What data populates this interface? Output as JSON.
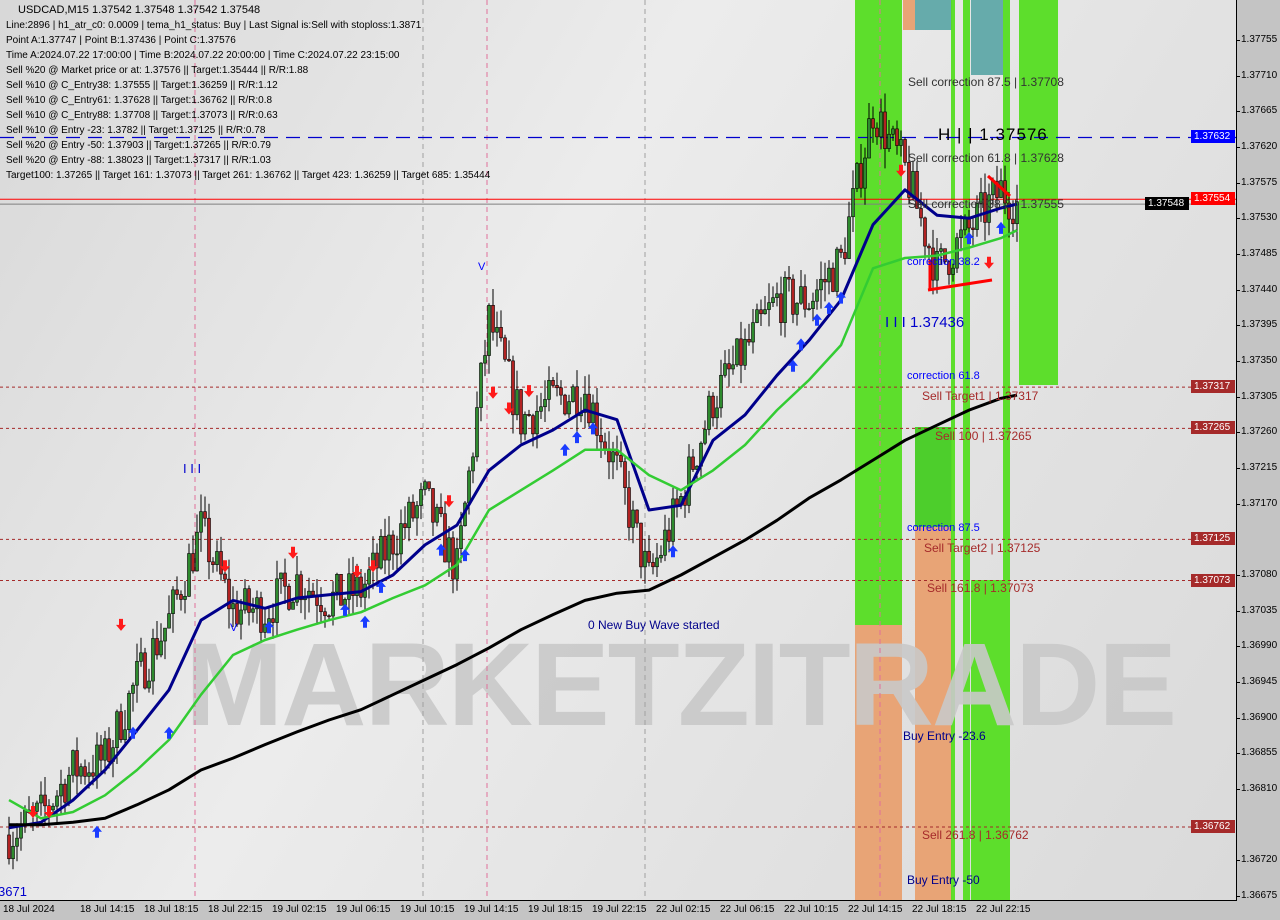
{
  "header": {
    "title": "USDCAD,M15  1.37542 1.37548 1.37542 1.37548",
    "lines": [
      "Line:2896 | h1_atr_c0: 0.0009 | tema_h1_status: Buy | Last Signal is:Sell with stoploss:1.3871",
      "Point A:1.37747 | Point B:1.37436 | Point C:1.37576",
      "Time A:2024.07.22 17:00:00 | Time B:2024.07.22 20:00:00 | Time C:2024.07.22 23:15:00",
      "Sell %20 @ Market price or at: 1.37576 || Target:1.35444 || R/R:1.88",
      "Sell %10 @ C_Entry38: 1.37555 || Target:1.36259 || R/R:1.12",
      "Sell %10 @ C_Entry61: 1.37628 || Target:1.36762 || R/R:0.8",
      "Sell %10 @ C_Entry88: 1.37708 || Target:1.37073 || R/R:0.63",
      "Sell %10 @ Entry -23: 1.3782 || Target:1.37125 || R/R:0.78",
      "Sell %20 @ Entry -50: 1.37903 || Target:1.37265 || R/R:0.79",
      "Sell %20 @ Entry -88: 1.38023 || Target:1.37317 || R/R:1.03",
      "Target100: 1.37265 || Target 161: 1.37073 || Target 261: 1.36762 || Target 423: 1.36259 || Target 685: 1.35444"
    ]
  },
  "watermark": "MARKETZITRADE",
  "chart_labels": {
    "sell_corr_875": "Sell correction 87.5 | 1.37708",
    "hh": "H | | 1.37576",
    "sell_corr_618": "Sell correction 61.8 | 1.37628",
    "sell_corr_382": "Sell correction 38.2 | 1.37555",
    "corr_382": "correction 38.2",
    "lll": "I I I 1.37436",
    "corr_618": "correction 61.8",
    "sell_target1": "Sell Target1 | 1.37317",
    "sell_100": "Sell 100 | 1.37265",
    "corr_875": "correction 87.5",
    "sell_target2": "Sell Target2 | 1.37125",
    "sell_1618": "Sell 161.8 | 1.37073",
    "buy_entry_236": "Buy Entry -23.6",
    "sell_2618": "Sell 261.8 | 1.36762",
    "buy_entry_50": "Buy Entry -50",
    "new_buy_wave": "0 New Buy Wave started",
    "wave_iii": "I I I",
    "wave_v_top": "V",
    "wave_v_low": "V",
    "bottom_left": "3671"
  },
  "chart_data": {
    "type": "candlestick",
    "symbol": "USDCAD",
    "timeframe": "M15",
    "ylim": [
      1.36675,
      1.37755
    ],
    "y_ticks": [
      "1.37755",
      "1.37710",
      "1.37665",
      "1.37620",
      "1.37575",
      "1.37530",
      "1.37485",
      "1.37440",
      "1.37395",
      "1.37350",
      "1.37305",
      "1.37260",
      "1.37215",
      "1.37170",
      "1.37080",
      "1.37035",
      "1.36990",
      "1.36945",
      "1.36900",
      "1.36855",
      "1.36810",
      "1.36720",
      "1.36675"
    ],
    "x_ticks": [
      {
        "label": "18 Jul 2024",
        "time": "2024.07.18 09:15"
      },
      {
        "label": "18 Jul 14:15",
        "time": "2024.07.18 14:15"
      },
      {
        "label": "18 Jul 18:15",
        "time": "2024.07.18 18:15"
      },
      {
        "label": "18 Jul 22:15",
        "time": "2024.07.18 22:15"
      },
      {
        "label": "19 Jul 02:15",
        "time": "2024.07.19 02:15"
      },
      {
        "label": "19 Jul 06:15",
        "time": "2024.07.19 06:15"
      },
      {
        "label": "19 Jul 10:15",
        "time": "2024.07.19 10:15"
      },
      {
        "label": "19 Jul 14:15",
        "time": "2024.07.19 14:15"
      },
      {
        "label": "19 Jul 18:15",
        "time": "2024.07.19 18:15"
      },
      {
        "label": "19 Jul 22:15",
        "time": "2024.07.19 22:15"
      },
      {
        "label": "22 Jul 02:15",
        "time": "2024.07.22 02:15"
      },
      {
        "label": "22 Jul 06:15",
        "time": "2024.07.22 06:15"
      },
      {
        "label": "22 Jul 10:15",
        "time": "2024.07.22 10:15"
      },
      {
        "label": "22 Jul 14:15",
        "time": "2024.07.22 14:15"
      },
      {
        "label": "22 Jul 18:15",
        "time": "2024.07.22 18:15"
      },
      {
        "label": "22 Jul 22:15",
        "time": "2024.07.22 22:15"
      }
    ],
    "price_tags": [
      {
        "value": "1.37632",
        "price": 1.37632,
        "color": "#0000ff"
      },
      {
        "value": "1.37554",
        "price": 1.37554,
        "color": "#ff0000"
      },
      {
        "value": "1.37548",
        "price": 1.37548,
        "color": "#000000"
      },
      {
        "value": "1.37317",
        "price": 1.37317,
        "color": "#a52a2a"
      },
      {
        "value": "1.37265",
        "price": 1.37265,
        "color": "#a52a2a"
      },
      {
        "value": "1.37125",
        "price": 1.37125,
        "color": "#a52a2a"
      },
      {
        "value": "1.37073",
        "price": 1.37073,
        "color": "#a52a2a"
      },
      {
        "value": "1.36762",
        "price": 1.36762,
        "color": "#a52a2a"
      }
    ],
    "horizontal_levels": [
      {
        "price": 1.37632,
        "style": "dashed",
        "color": "#0000cd"
      },
      {
        "price": 1.37554,
        "style": "solid",
        "color": "#ff0000"
      },
      {
        "price": 1.37548,
        "style": "solid",
        "color": "#808080"
      },
      {
        "price": 1.37317,
        "style": "dotted",
        "color": "#a52a2a"
      },
      {
        "price": 1.37265,
        "style": "dotted",
        "color": "#a52a2a"
      },
      {
        "price": 1.37125,
        "style": "dotted",
        "color": "#a52a2a"
      },
      {
        "price": 1.37073,
        "style": "dotted",
        "color": "#a52a2a"
      },
      {
        "price": 1.36762,
        "style": "dotted",
        "color": "#a52a2a"
      }
    ],
    "times": [
      "2024.07.18 08:15",
      "2024.07.18 10:15",
      "2024.07.18 12:15",
      "2024.07.18 14:15",
      "2024.07.18 16:15",
      "2024.07.18 18:15",
      "2024.07.18 20:15",
      "2024.07.18 22:15",
      "2024.07.19 00:15",
      "2024.07.19 02:15",
      "2024.07.19 04:15",
      "2024.07.19 06:15",
      "2024.07.19 08:15",
      "2024.07.19 10:15",
      "2024.07.19 12:15",
      "2024.07.19 14:15",
      "2024.07.19 16:15",
      "2024.07.19 18:15",
      "2024.07.19 20:15",
      "2024.07.19 22:15",
      "2024.07.22 00:15",
      "2024.07.22 02:15",
      "2024.07.22 04:15",
      "2024.07.22 06:15",
      "2024.07.22 08:15",
      "2024.07.22 10:15",
      "2024.07.22 12:15",
      "2024.07.22 14:15",
      "2024.07.22 16:15",
      "2024.07.22 18:15",
      "2024.07.22 20:15",
      "2024.07.22 22:15",
      "2024.07.22 23:15"
    ],
    "close": [
      1.36752,
      1.36777,
      1.36834,
      1.36847,
      1.36948,
      1.37023,
      1.37137,
      1.37036,
      1.37036,
      1.37074,
      1.37048,
      1.37061,
      1.37124,
      1.37175,
      1.37086,
      1.37402,
      1.37276,
      1.37301,
      1.37314,
      1.37212,
      1.37074,
      1.37175,
      1.37301,
      1.37364,
      1.37427,
      1.37427,
      1.37477,
      1.37667,
      1.37591,
      1.37465,
      1.37515,
      1.37566,
      1.37548
    ],
    "series": [
      {
        "color": "#00008b",
        "values": [
          1.36761,
          1.36768,
          1.36796,
          1.36834,
          1.36884,
          1.36935,
          1.37023,
          1.37048,
          1.37038,
          1.37051,
          1.37055,
          1.37059,
          1.3708,
          1.37118,
          1.37143,
          1.37212,
          1.37244,
          1.37263,
          1.37288,
          1.37276,
          1.37162,
          1.37168,
          1.3725,
          1.37282,
          1.37332,
          1.37376,
          1.37427,
          1.37522,
          1.37566,
          1.37534,
          1.3753,
          1.37543,
          1.37548
        ]
      },
      {
        "color": "#33cc33",
        "values": [
          1.36796,
          1.36773,
          1.36781,
          1.36802,
          1.36834,
          1.36872,
          1.36929,
          1.36979,
          1.36998,
          1.37011,
          1.37023,
          1.37033,
          1.37051,
          1.37067,
          1.37093,
          1.37162,
          1.37187,
          1.37212,
          1.37238,
          1.37238,
          1.37206,
          1.37187,
          1.37212,
          1.37244,
          1.37288,
          1.37326,
          1.3737,
          1.37467,
          1.3748,
          1.37483,
          1.37493,
          1.37505,
          1.37515
        ]
      },
      {
        "color": "#000000",
        "values": [
          1.36765,
          1.36765,
          1.36768,
          1.36773,
          1.3679,
          1.36809,
          1.36834,
          1.36849,
          1.36866,
          1.36882,
          1.36897,
          1.3691,
          1.36929,
          1.36948,
          1.36967,
          1.36988,
          1.37011,
          1.3703,
          1.37048,
          1.37057,
          1.37061,
          1.3708,
          1.37102,
          1.37124,
          1.37149,
          1.37177,
          1.372,
          1.37225,
          1.3725,
          1.37269,
          1.37288,
          1.37303,
          1.37307
        ]
      }
    ],
    "signals": [
      {
        "time": "2024.07.18 13:45",
        "price": 1.36756,
        "dir": "buy"
      },
      {
        "time": "2024.07.18 16:00",
        "price": 1.36881,
        "dir": "buy"
      },
      {
        "time": "2024.07.18 18:15",
        "price": 1.36881,
        "dir": "buy"
      },
      {
        "time": "2024.07.19 00:30",
        "price": 1.37014,
        "dir": "buy"
      },
      {
        "time": "2024.07.19 05:15",
        "price": 1.37036,
        "dir": "buy"
      },
      {
        "time": "2024.07.19 06:30",
        "price": 1.37021,
        "dir": "buy"
      },
      {
        "time": "2024.07.19 07:30",
        "price": 1.37065,
        "dir": "buy"
      },
      {
        "time": "2024.07.19 11:15",
        "price": 1.37112,
        "dir": "buy"
      },
      {
        "time": "2024.07.19 12:45",
        "price": 1.37105,
        "dir": "buy"
      },
      {
        "time": "2024.07.19 19:00",
        "price": 1.37238,
        "dir": "buy"
      },
      {
        "time": "2024.07.19 19:45",
        "price": 1.37254,
        "dir": "buy"
      },
      {
        "time": "2024.07.19 20:45",
        "price": 1.37265,
        "dir": "buy"
      },
      {
        "time": "2024.07.22 01:45",
        "price": 1.3711,
        "dir": "buy"
      },
      {
        "time": "2024.07.22 09:15",
        "price": 1.37344,
        "dir": "buy"
      },
      {
        "time": "2024.07.22 09:45",
        "price": 1.37371,
        "dir": "buy"
      },
      {
        "time": "2024.07.22 10:45",
        "price": 1.37402,
        "dir": "buy"
      },
      {
        "time": "2024.07.22 11:30",
        "price": 1.37417,
        "dir": "buy"
      },
      {
        "time": "2024.07.22 12:15",
        "price": 1.3743,
        "dir": "buy"
      },
      {
        "time": "2024.07.22 20:15",
        "price": 1.37505,
        "dir": "buy"
      },
      {
        "time": "2024.07.22 22:15",
        "price": 1.37518,
        "dir": "buy"
      },
      {
        "time": "2024.07.18 09:45",
        "price": 1.36781,
        "dir": "sell"
      },
      {
        "time": "2024.07.18 10:45",
        "price": 1.36781,
        "dir": "sell"
      },
      {
        "time": "2024.07.18 15:15",
        "price": 1.37017,
        "dir": "sell"
      },
      {
        "time": "2024.07.18 21:45",
        "price": 1.37091,
        "dir": "sell"
      },
      {
        "time": "2024.07.19 02:00",
        "price": 1.37108,
        "dir": "sell"
      },
      {
        "time": "2024.07.19 06:00",
        "price": 1.37084,
        "dir": "sell"
      },
      {
        "time": "2024.07.19 07:00",
        "price": 1.37091,
        "dir": "sell"
      },
      {
        "time": "2024.07.19 11:45",
        "price": 1.37173,
        "dir": "sell"
      },
      {
        "time": "2024.07.19 14:30",
        "price": 1.3731,
        "dir": "sell"
      },
      {
        "time": "2024.07.19 15:30",
        "price": 1.3729,
        "dir": "sell"
      },
      {
        "time": "2024.07.19 16:45",
        "price": 1.37312,
        "dir": "sell"
      },
      {
        "time": "2024.07.22 16:00",
        "price": 1.3759,
        "dir": "sell"
      },
      {
        "time": "2024.07.22 21:30",
        "price": 1.37474,
        "dir": "sell"
      }
    ],
    "colors": {
      "up_candle": "#2e8b2e",
      "down_candle": "#b22222",
      "zone_green": "#55dd22",
      "zone_orange": "#e8a070",
      "zone_teal": "#5fa8a8"
    }
  }
}
